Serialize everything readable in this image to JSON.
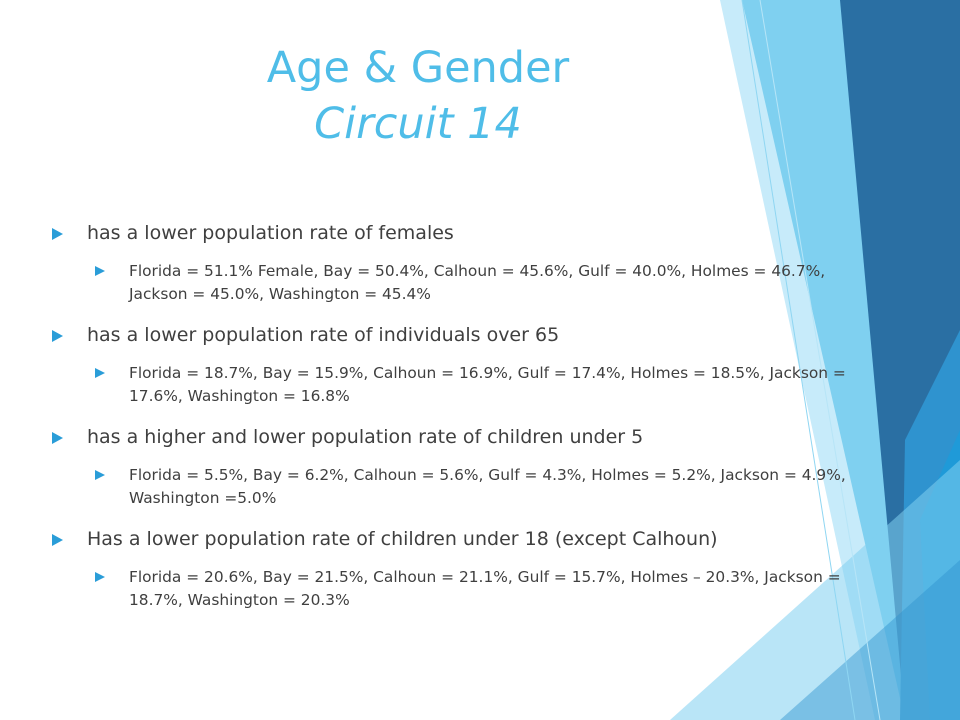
{
  "slide": {
    "title_line1": "Age & Gender",
    "title_line2": "Circuit 14"
  },
  "bullets": [
    {
      "text": "has a lower population rate of females",
      "sub": "Florida = 51.1% Female, Bay = 50.4%, Calhoun = 45.6%, Gulf = 40.0%, Holmes = 46.7%, Jackson = 45.0%, Washington = 45.4%"
    },
    {
      "text": "has a lower population rate of individuals over 65",
      "sub": "Florida = 18.7%, Bay = 15.9%, Calhoun = 16.9%, Gulf = 17.4%, Holmes = 18.5%, Jackson = 17.6%, Washington = 16.8%"
    },
    {
      "text": "has a higher and lower population rate of children under 5",
      "sub": "Florida = 5.5%, Bay = 6.2%, Calhoun = 5.6%, Gulf = 4.3%, Holmes = 5.2%, Jackson = 4.9%, Washington =5.0%"
    },
    {
      "text": "Has a lower population rate of children under 18 (except Calhoun)",
      "sub": "Florida = 20.6%, Bay = 21.5%, Calhoun = 21.1%, Gulf = 15.7%, Holmes – 20.3%, Jackson = 18.7%, Washington = 20.3%"
    }
  ],
  "colors": {
    "title": "#4fbde8",
    "bullet_marker": "#2a9dd8",
    "text": "#3f3f3f",
    "decor_dark": "#2a6fa3",
    "decor_mid": "#2f93cf",
    "decor_light": "#7fd0f0",
    "decor_pale": "#c7ebfa"
  },
  "icons": {
    "bullet_marker": "triangle-right-icon"
  }
}
